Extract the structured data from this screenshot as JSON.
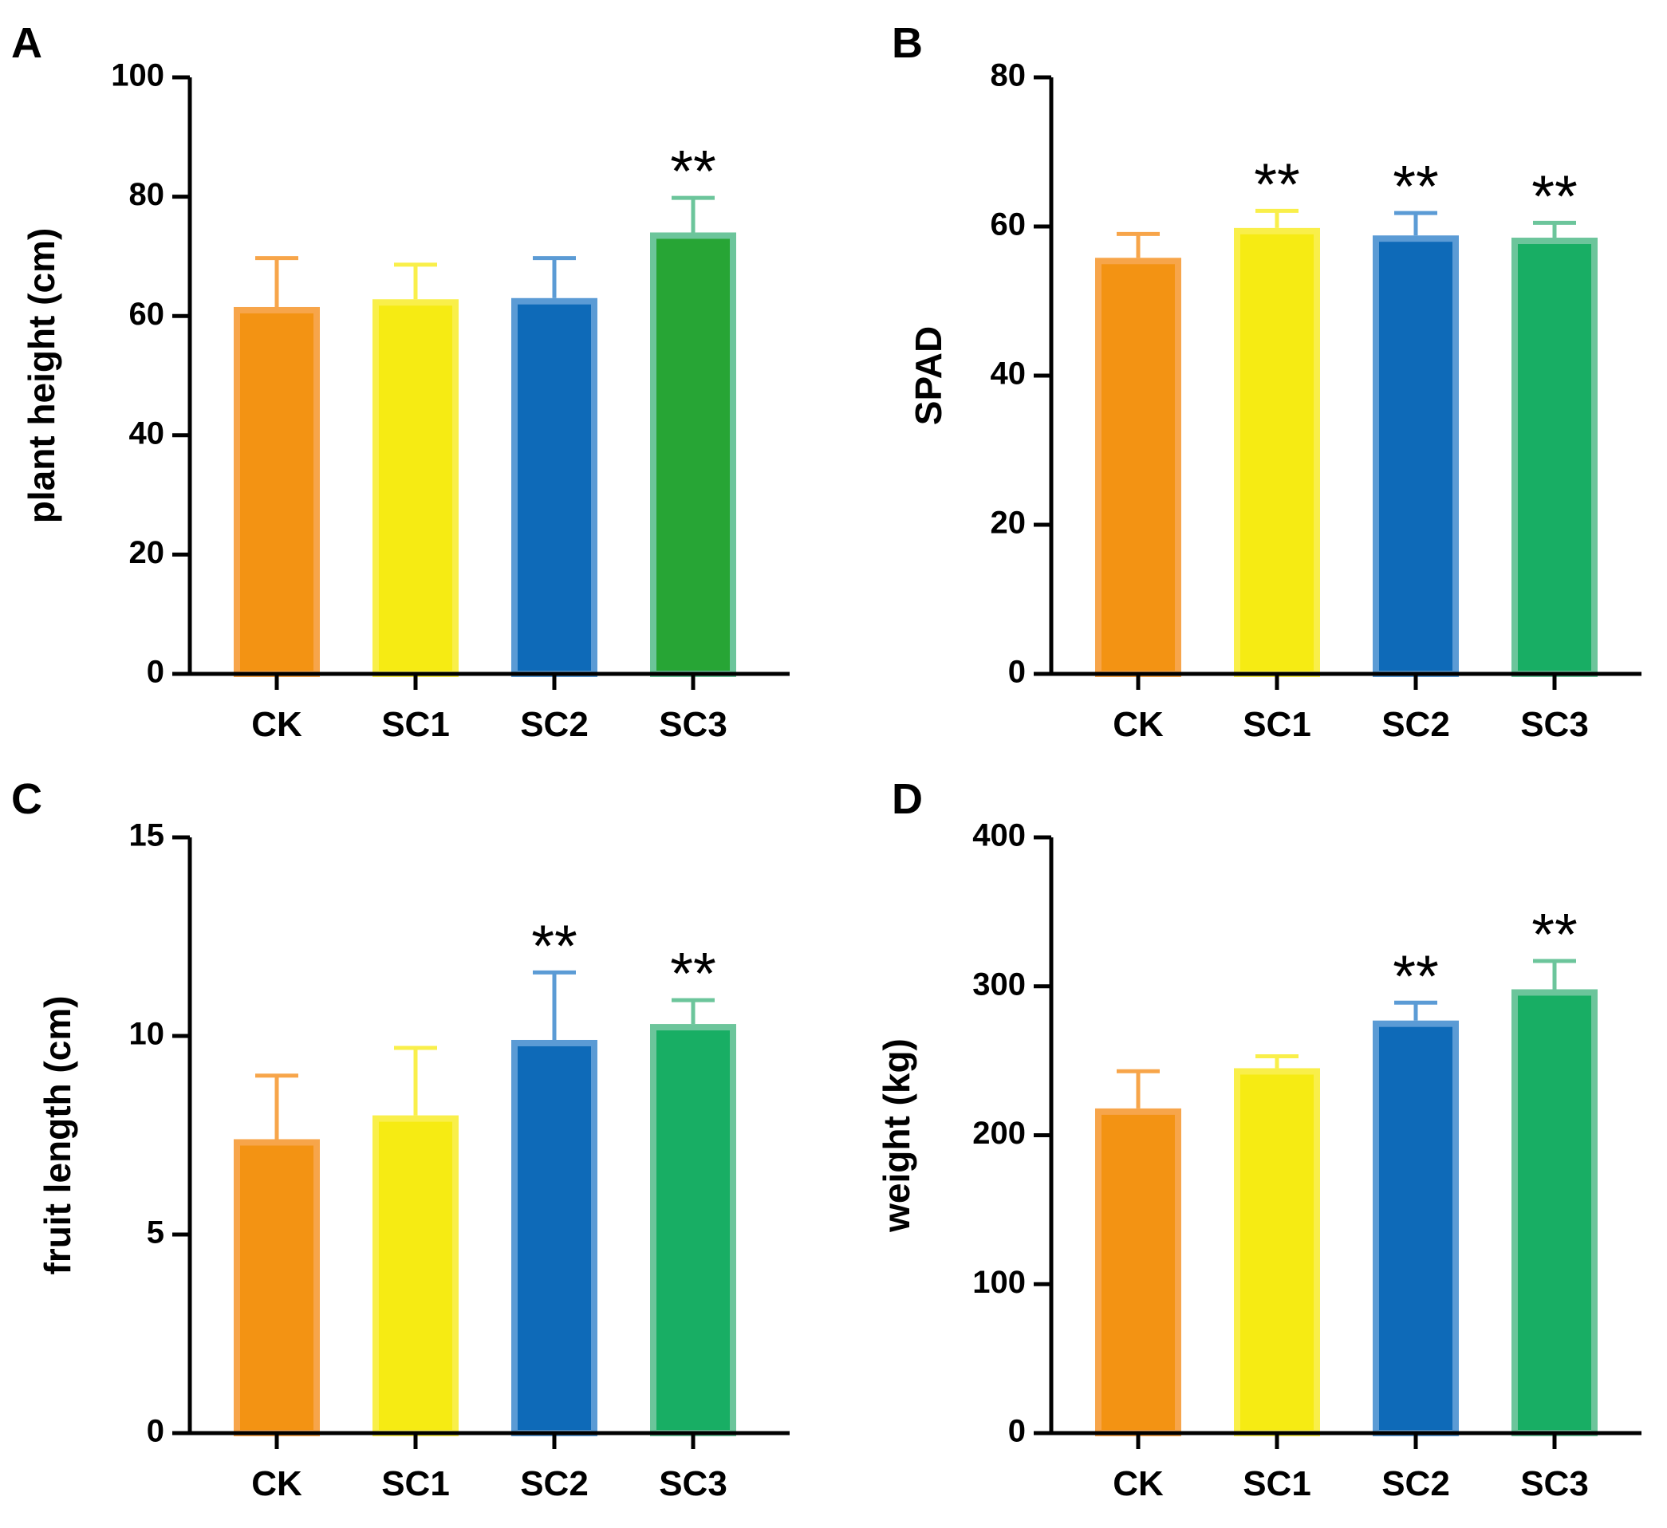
{
  "colors": {
    "bar_fill": [
      "#f39313",
      "#f6eb13",
      "#0e6ab8",
      "#18ae64"
    ],
    "bar_edge": [
      "#f7a54a",
      "#f9ef4a",
      "#5b9bd5",
      "#6cc59b"
    ]
  },
  "chart_data": [
    {
      "type": "bar",
      "panel": "A",
      "ylabel": "plant height (cm)",
      "categories": [
        "CK",
        "SC1",
        "SC2",
        "SC3"
      ],
      "values": [
        61.5,
        62.8,
        63.0,
        74.0
      ],
      "errors": [
        8.2,
        5.8,
        6.7,
        5.8
      ],
      "significance": [
        "",
        "",
        "",
        "**"
      ],
      "ylim": [
        0,
        100
      ],
      "yticks": [
        0,
        20,
        40,
        60,
        80,
        100
      ],
      "bar_fill": [
        "#f39313",
        "#f6eb13",
        "#0e6ab8",
        "#27a535"
      ]
    },
    {
      "type": "bar",
      "panel": "B",
      "ylabel": "SPAD",
      "categories": [
        "CK",
        "SC1",
        "SC2",
        "SC3"
      ],
      "values": [
        55.8,
        59.8,
        58.8,
        58.5
      ],
      "errors": [
        3.2,
        2.3,
        3.0,
        2.0
      ],
      "significance": [
        "",
        "**",
        "**",
        "**"
      ],
      "ylim": [
        0,
        80
      ],
      "yticks": [
        0,
        20,
        40,
        60,
        80
      ]
    },
    {
      "type": "bar",
      "panel": "C",
      "ylabel": "fruit length (cm)",
      "categories": [
        "CK",
        "SC1",
        "SC2",
        "SC3"
      ],
      "values": [
        7.4,
        8.0,
        9.9,
        10.3
      ],
      "errors": [
        1.6,
        1.7,
        1.7,
        0.6
      ],
      "significance": [
        "",
        "",
        "**",
        "**"
      ],
      "ylim": [
        0,
        15
      ],
      "yticks": [
        0,
        5,
        10,
        15
      ]
    },
    {
      "type": "bar",
      "panel": "D",
      "ylabel": "weight (kg)",
      "categories": [
        "CK",
        "SC1",
        "SC2",
        "SC3"
      ],
      "values": [
        218,
        245,
        277,
        298
      ],
      "errors": [
        25,
        8,
        12,
        19
      ],
      "significance": [
        "",
        "",
        "**",
        "**"
      ],
      "ylim": [
        0,
        400
      ],
      "yticks": [
        0,
        100,
        200,
        300,
        400
      ]
    }
  ]
}
